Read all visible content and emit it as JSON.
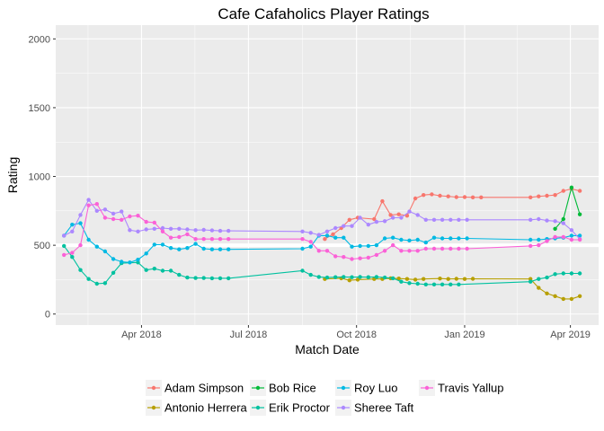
{
  "chart_data": {
    "type": "line",
    "title": "Cafe Cafaholics Player Ratings",
    "xlabel": "Match Date",
    "ylabel": "Rating",
    "x_range": [
      "2018-01-18",
      "2019-04-25"
    ],
    "ylim": [
      -80,
      2100
    ],
    "y_ticks": [
      0,
      500,
      1000,
      1500,
      2000
    ],
    "x_ticks": [
      {
        "date": "2018-04-01",
        "label": "Apr 2018"
      },
      {
        "date": "2018-07-01",
        "label": "Jul 2018"
      },
      {
        "date": "2018-10-01",
        "label": "Oct 2018"
      },
      {
        "date": "2019-01-01",
        "label": "Jan 2019"
      },
      {
        "date": "2019-04-01",
        "label": "Apr 2019"
      }
    ],
    "reference_line": 500,
    "grid": true,
    "legend_position": "bottom",
    "series": [
      {
        "name": "Adam Simpson",
        "color": "#F8766D",
        "points": [
          [
            "2018-09-04",
            545
          ],
          [
            "2018-09-11",
            580
          ],
          [
            "2018-09-18",
            625
          ],
          [
            "2018-09-25",
            685
          ],
          [
            "2018-10-02",
            700
          ],
          [
            "2018-10-16",
            690
          ],
          [
            "2018-10-23",
            820
          ],
          [
            "2018-10-30",
            720
          ],
          [
            "2018-11-06",
            725
          ],
          [
            "2018-11-13",
            715
          ],
          [
            "2018-11-20",
            840
          ],
          [
            "2018-11-27",
            865
          ],
          [
            "2018-12-04",
            870
          ],
          [
            "2018-12-11",
            860
          ],
          [
            "2018-12-18",
            855
          ],
          [
            "2018-12-25",
            850
          ],
          [
            "2019-01-01",
            850
          ],
          [
            "2019-01-08",
            848
          ],
          [
            "2019-01-15",
            848
          ],
          [
            "2019-02-26",
            848
          ],
          [
            "2019-03-05",
            855
          ],
          [
            "2019-03-12",
            860
          ],
          [
            "2019-03-19",
            865
          ],
          [
            "2019-03-26",
            895
          ],
          [
            "2019-04-02",
            910
          ],
          [
            "2019-04-09",
            895
          ]
        ]
      },
      {
        "name": "Antonio Herrera",
        "color": "#B79F00",
        "points": [
          [
            "2018-09-04",
            255
          ],
          [
            "2018-09-18",
            260
          ],
          [
            "2018-09-25",
            245
          ],
          [
            "2018-10-02",
            250
          ],
          [
            "2018-10-16",
            255
          ],
          [
            "2018-10-23",
            255
          ],
          [
            "2018-10-30",
            260
          ],
          [
            "2018-11-06",
            258
          ],
          [
            "2018-11-13",
            255
          ],
          [
            "2018-11-20",
            250
          ],
          [
            "2018-11-27",
            255
          ],
          [
            "2018-12-11",
            258
          ],
          [
            "2018-12-18",
            255
          ],
          [
            "2018-12-25",
            256
          ],
          [
            "2019-01-01",
            255
          ],
          [
            "2019-01-08",
            256
          ],
          [
            "2019-02-26",
            255
          ],
          [
            "2019-03-05",
            190
          ],
          [
            "2019-03-12",
            150
          ],
          [
            "2019-03-19",
            130
          ],
          [
            "2019-03-26",
            110
          ],
          [
            "2019-04-02",
            110
          ],
          [
            "2019-04-09",
            130
          ]
        ]
      },
      {
        "name": "Bob Rice",
        "color": "#00BA38",
        "points": [
          [
            "2019-03-19",
            620
          ],
          [
            "2019-03-26",
            690
          ],
          [
            "2019-04-02",
            920
          ],
          [
            "2019-04-09",
            725
          ]
        ]
      },
      {
        "name": "Erik Proctor",
        "color": "#00C19F",
        "points": [
          [
            "2018-01-25",
            495
          ],
          [
            "2018-02-01",
            415
          ],
          [
            "2018-02-08",
            320
          ],
          [
            "2018-02-15",
            255
          ],
          [
            "2018-02-22",
            220
          ],
          [
            "2018-03-01",
            225
          ],
          [
            "2018-03-08",
            300
          ],
          [
            "2018-03-15",
            370
          ],
          [
            "2018-03-29",
            375
          ],
          [
            "2018-04-05",
            320
          ],
          [
            "2018-04-12",
            330
          ],
          [
            "2018-04-19",
            315
          ],
          [
            "2018-04-26",
            315
          ],
          [
            "2018-05-03",
            285
          ],
          [
            "2018-05-10",
            265
          ],
          [
            "2018-05-17",
            262
          ],
          [
            "2018-05-24",
            262
          ],
          [
            "2018-05-31",
            260
          ],
          [
            "2018-06-07",
            260
          ],
          [
            "2018-06-14",
            260
          ],
          [
            "2018-08-16",
            315
          ],
          [
            "2018-08-23",
            285
          ],
          [
            "2018-08-30",
            270
          ],
          [
            "2018-09-06",
            265
          ],
          [
            "2018-09-13",
            268
          ],
          [
            "2018-09-20",
            270
          ],
          [
            "2018-09-27",
            268
          ],
          [
            "2018-10-04",
            270
          ],
          [
            "2018-10-11",
            268
          ],
          [
            "2018-10-18",
            270
          ],
          [
            "2018-10-25",
            265
          ],
          [
            "2018-11-01",
            260
          ],
          [
            "2018-11-08",
            235
          ],
          [
            "2018-11-15",
            225
          ],
          [
            "2018-11-22",
            220
          ],
          [
            "2018-11-29",
            215
          ],
          [
            "2018-12-06",
            215
          ],
          [
            "2018-12-13",
            215
          ],
          [
            "2018-12-20",
            215
          ],
          [
            "2018-12-27",
            215
          ],
          [
            "2019-02-26",
            235
          ],
          [
            "2019-03-05",
            255
          ],
          [
            "2019-03-12",
            265
          ],
          [
            "2019-03-19",
            290
          ],
          [
            "2019-03-26",
            295
          ],
          [
            "2019-04-02",
            295
          ],
          [
            "2019-04-09",
            295
          ]
        ]
      },
      {
        "name": "Roy Luo",
        "color": "#00B9E3",
        "points": [
          [
            "2018-01-25",
            570
          ],
          [
            "2018-02-01",
            650
          ],
          [
            "2018-02-08",
            660
          ],
          [
            "2018-02-15",
            540
          ],
          [
            "2018-02-22",
            490
          ],
          [
            "2018-03-01",
            455
          ],
          [
            "2018-03-08",
            400
          ],
          [
            "2018-03-15",
            380
          ],
          [
            "2018-03-22",
            375
          ],
          [
            "2018-03-29",
            395
          ],
          [
            "2018-04-05",
            440
          ],
          [
            "2018-04-12",
            505
          ],
          [
            "2018-04-19",
            505
          ],
          [
            "2018-04-26",
            480
          ],
          [
            "2018-05-03",
            470
          ],
          [
            "2018-05-10",
            480
          ],
          [
            "2018-05-17",
            510
          ],
          [
            "2018-05-24",
            475
          ],
          [
            "2018-05-31",
            470
          ],
          [
            "2018-06-07",
            470
          ],
          [
            "2018-06-14",
            470
          ],
          [
            "2018-08-16",
            475
          ],
          [
            "2018-08-23",
            490
          ],
          [
            "2018-08-30",
            570
          ],
          [
            "2018-09-06",
            570
          ],
          [
            "2018-09-13",
            555
          ],
          [
            "2018-09-20",
            555
          ],
          [
            "2018-09-27",
            490
          ],
          [
            "2018-10-04",
            495
          ],
          [
            "2018-10-11",
            495
          ],
          [
            "2018-10-18",
            500
          ],
          [
            "2018-10-25",
            550
          ],
          [
            "2018-11-01",
            555
          ],
          [
            "2018-11-08",
            540
          ],
          [
            "2018-11-15",
            535
          ],
          [
            "2018-11-22",
            540
          ],
          [
            "2018-11-29",
            520
          ],
          [
            "2018-12-06",
            555
          ],
          [
            "2018-12-13",
            550
          ],
          [
            "2018-12-20",
            550
          ],
          [
            "2018-12-27",
            550
          ],
          [
            "2019-01-03",
            550
          ],
          [
            "2019-02-26",
            540
          ],
          [
            "2019-03-05",
            540
          ],
          [
            "2019-03-12",
            545
          ],
          [
            "2019-03-19",
            550
          ],
          [
            "2019-03-26",
            555
          ],
          [
            "2019-04-02",
            570
          ],
          [
            "2019-04-09",
            570
          ]
        ]
      },
      {
        "name": "Sheree Taft",
        "color": "#AC88FF",
        "points": [
          [
            "2018-01-25",
            570
          ],
          [
            "2018-02-01",
            600
          ],
          [
            "2018-02-08",
            720
          ],
          [
            "2018-02-15",
            830
          ],
          [
            "2018-02-22",
            750
          ],
          [
            "2018-03-01",
            760
          ],
          [
            "2018-03-08",
            730
          ],
          [
            "2018-03-15",
            745
          ],
          [
            "2018-03-22",
            610
          ],
          [
            "2018-03-29",
            600
          ],
          [
            "2018-04-05",
            615
          ],
          [
            "2018-04-12",
            620
          ],
          [
            "2018-04-19",
            625
          ],
          [
            "2018-04-26",
            620
          ],
          [
            "2018-05-03",
            620
          ],
          [
            "2018-05-10",
            615
          ],
          [
            "2018-05-17",
            610
          ],
          [
            "2018-05-24",
            612
          ],
          [
            "2018-05-31",
            608
          ],
          [
            "2018-06-07",
            605
          ],
          [
            "2018-06-14",
            605
          ],
          [
            "2018-08-16",
            600
          ],
          [
            "2018-08-23",
            590
          ],
          [
            "2018-08-30",
            575
          ],
          [
            "2018-09-06",
            600
          ],
          [
            "2018-09-13",
            625
          ],
          [
            "2018-09-20",
            640
          ],
          [
            "2018-09-27",
            640
          ],
          [
            "2018-10-04",
            700
          ],
          [
            "2018-10-11",
            650
          ],
          [
            "2018-10-18",
            670
          ],
          [
            "2018-10-25",
            675
          ],
          [
            "2018-11-01",
            700
          ],
          [
            "2018-11-08",
            700
          ],
          [
            "2018-11-15",
            745
          ],
          [
            "2018-11-22",
            720
          ],
          [
            "2018-11-29",
            685
          ],
          [
            "2018-12-06",
            685
          ],
          [
            "2018-12-13",
            685
          ],
          [
            "2018-12-20",
            685
          ],
          [
            "2018-12-27",
            685
          ],
          [
            "2019-01-03",
            685
          ],
          [
            "2019-02-26",
            685
          ],
          [
            "2019-03-05",
            690
          ],
          [
            "2019-03-12",
            680
          ],
          [
            "2019-03-19",
            675
          ],
          [
            "2019-03-26",
            660
          ],
          [
            "2019-04-02",
            610
          ],
          [
            "2019-04-09",
            545
          ]
        ]
      },
      {
        "name": "Travis Yallup",
        "color": "#FB61D7",
        "points": [
          [
            "2018-01-25",
            430
          ],
          [
            "2018-02-01",
            445
          ],
          [
            "2018-02-08",
            500
          ],
          [
            "2018-02-15",
            790
          ],
          [
            "2018-02-22",
            800
          ],
          [
            "2018-03-01",
            700
          ],
          [
            "2018-03-08",
            690
          ],
          [
            "2018-03-15",
            685
          ],
          [
            "2018-03-22",
            710
          ],
          [
            "2018-03-29",
            715
          ],
          [
            "2018-04-05",
            670
          ],
          [
            "2018-04-12",
            665
          ],
          [
            "2018-04-19",
            600
          ],
          [
            "2018-04-26",
            555
          ],
          [
            "2018-05-03",
            560
          ],
          [
            "2018-05-10",
            580
          ],
          [
            "2018-05-17",
            545
          ],
          [
            "2018-05-24",
            545
          ],
          [
            "2018-05-31",
            545
          ],
          [
            "2018-06-07",
            545
          ],
          [
            "2018-06-14",
            545
          ],
          [
            "2018-08-16",
            545
          ],
          [
            "2018-08-23",
            525
          ],
          [
            "2018-08-30",
            460
          ],
          [
            "2018-09-06",
            460
          ],
          [
            "2018-09-13",
            420
          ],
          [
            "2018-09-20",
            415
          ],
          [
            "2018-09-27",
            400
          ],
          [
            "2018-10-04",
            405
          ],
          [
            "2018-10-11",
            410
          ],
          [
            "2018-10-18",
            430
          ],
          [
            "2018-10-25",
            460
          ],
          [
            "2018-11-01",
            500
          ],
          [
            "2018-11-08",
            460
          ],
          [
            "2018-11-15",
            460
          ],
          [
            "2018-11-22",
            460
          ],
          [
            "2018-11-29",
            475
          ],
          [
            "2018-12-06",
            475
          ],
          [
            "2018-12-13",
            475
          ],
          [
            "2018-12-20",
            475
          ],
          [
            "2018-12-27",
            475
          ],
          [
            "2019-01-03",
            475
          ],
          [
            "2019-02-26",
            495
          ],
          [
            "2019-03-05",
            500
          ],
          [
            "2019-03-12",
            530
          ],
          [
            "2019-03-19",
            560
          ],
          [
            "2019-03-26",
            560
          ],
          [
            "2019-04-02",
            540
          ],
          [
            "2019-04-09",
            540
          ]
        ]
      }
    ]
  }
}
